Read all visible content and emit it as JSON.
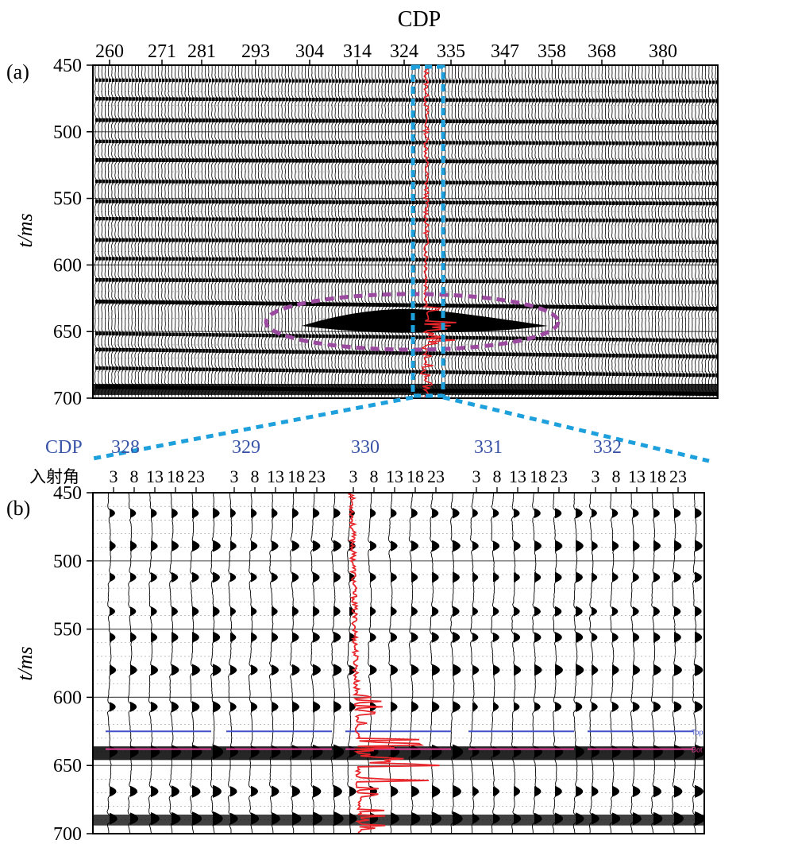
{
  "chart_data": [
    {
      "panel": "(a)",
      "type": "seismic-section",
      "title": "CDP",
      "x_ticks": [
        "260",
        "271",
        "281",
        "293",
        "304",
        "314",
        "324",
        "335",
        "347",
        "358",
        "368",
        "380"
      ],
      "x_range": [
        260,
        393
      ],
      "y_label": "t/ms",
      "y_ticks": [
        "450",
        "500",
        "550",
        "600",
        "650",
        "700"
      ],
      "y_range": [
        450,
        700
      ],
      "highlight_ellipse": {
        "center_cdp": 330,
        "center_t": 640,
        "color": "#9b4aa0",
        "style": "dashed"
      },
      "well_box": {
        "cdp_range": [
          328,
          332
        ],
        "color": "#1ea0dc",
        "style": "dashed"
      },
      "well_log_color": "#e8252a"
    },
    {
      "panel": "(b)",
      "type": "angle-gathers",
      "cdp_label": "CDP",
      "cdps": [
        "328",
        "329",
        "330",
        "331",
        "332"
      ],
      "angle_label": "入射角",
      "angle_ticks": [
        "3",
        "8",
        "13",
        "18",
        "23"
      ],
      "y_label": "t/ms",
      "y_ticks": [
        "450",
        "500",
        "550",
        "600",
        "650",
        "700"
      ],
      "y_range": [
        450,
        700
      ],
      "horizons": [
        {
          "name": "Top",
          "t": 625,
          "color": "#4050c8"
        },
        {
          "name": "Bot",
          "t": 638,
          "color": "#e0409a"
        }
      ],
      "well_log_cdp": "330",
      "well_log_color": "#e8252a",
      "cdp_label_color": "#3a55a8"
    }
  ]
}
